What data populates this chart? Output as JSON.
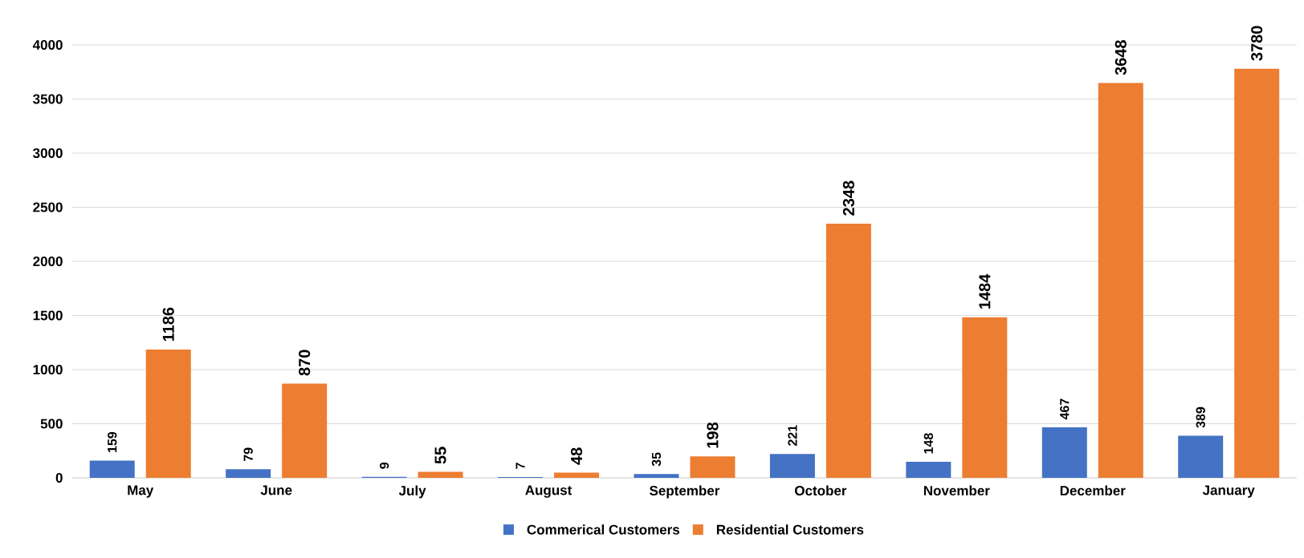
{
  "chart_data": {
    "type": "bar",
    "categories": [
      "May",
      "June",
      "July",
      "August",
      "September",
      "October",
      "November",
      "December",
      "January"
    ],
    "series": [
      {
        "name": "Commerical Customers",
        "color": "#4472c4",
        "values": [
          159,
          79,
          9,
          7,
          35,
          221,
          148,
          467,
          389
        ]
      },
      {
        "name": "Residential Customers",
        "color": "#ed7d31",
        "values": [
          1186,
          870,
          55,
          48,
          198,
          2348,
          1484,
          3648,
          3780
        ]
      }
    ],
    "ylim": [
      0,
      4000
    ],
    "yticks": [
      0,
      500,
      1000,
      1500,
      2000,
      2500,
      3000,
      3500,
      4000
    ],
    "grid": "y",
    "legend": "bottom",
    "data_labels": true
  }
}
